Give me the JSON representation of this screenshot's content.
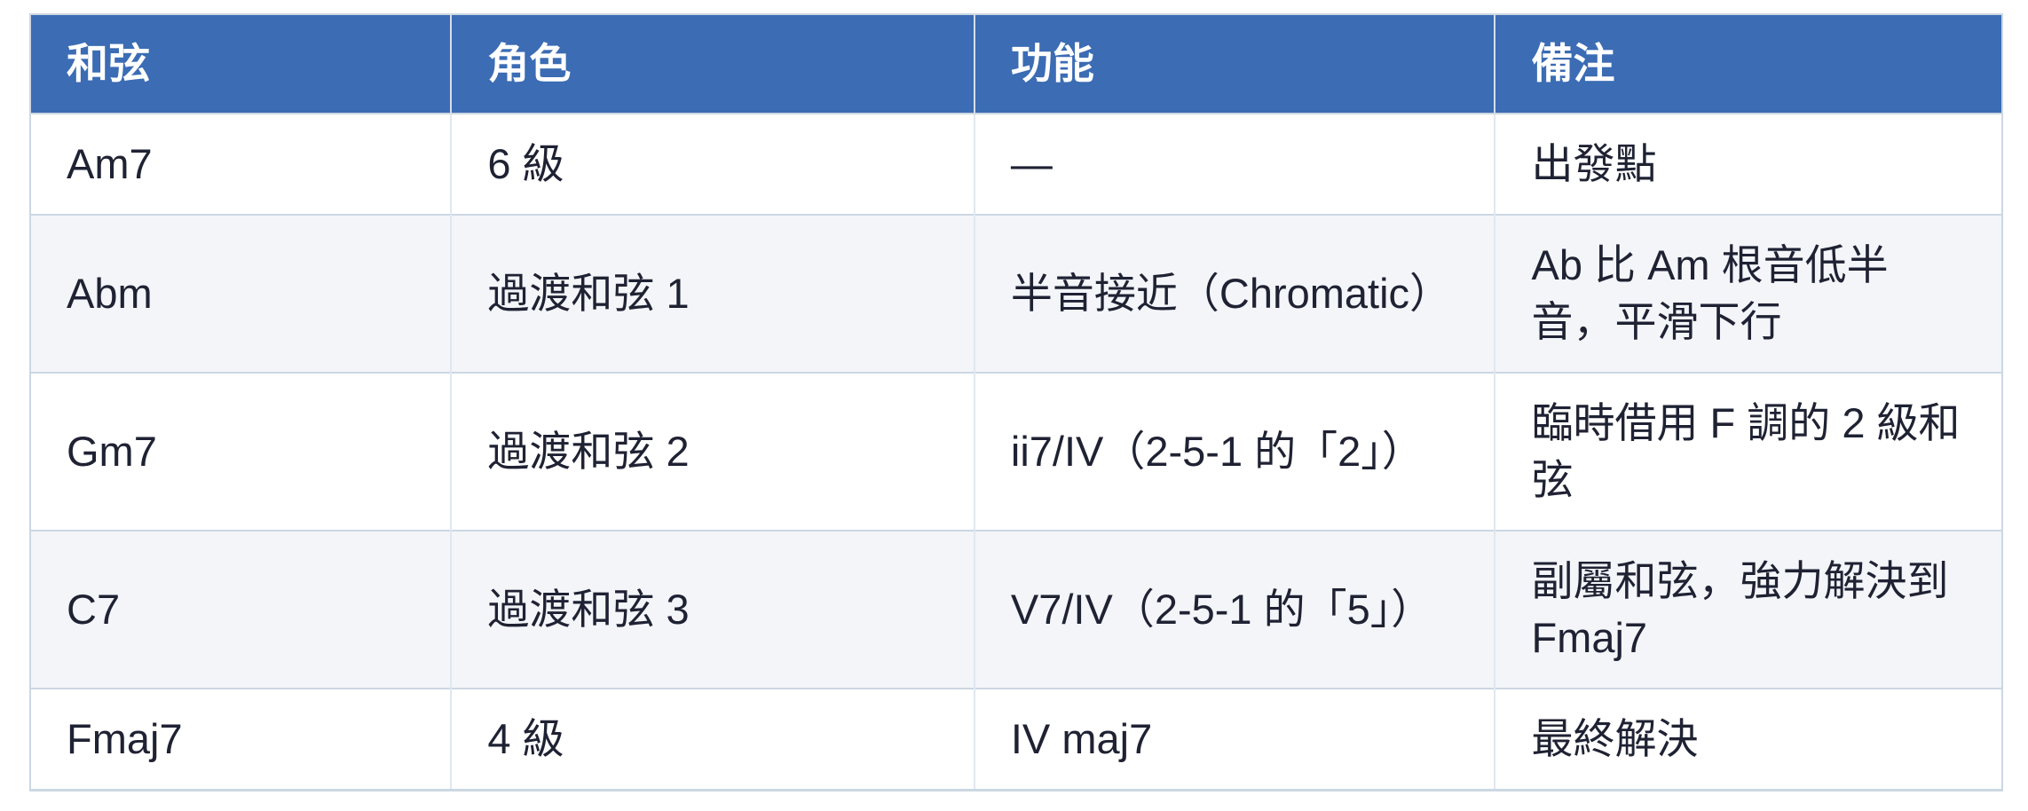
{
  "table": {
    "columns": [
      {
        "key": "chord",
        "label": "和弦"
      },
      {
        "key": "role",
        "label": "角色"
      },
      {
        "key": "function",
        "label": "功能"
      },
      {
        "key": "note",
        "label": "備注"
      }
    ],
    "rows": [
      {
        "chord": "Am7",
        "role": "6 級",
        "function": "—",
        "note": "出發點"
      },
      {
        "chord": "Abm",
        "role": "過渡和弦 1",
        "function": "半音接近（Chromatic）",
        "note": "Ab 比 Am 根音低半音，平滑下行"
      },
      {
        "chord": "Gm7",
        "role": "過渡和弦 2",
        "function": "ii7/IV（2-5-1 的「2」）",
        "note": "臨時借用 F 調的 2 級和弦"
      },
      {
        "chord": "C7",
        "role": "過渡和弦 3",
        "function": "V7/IV（2-5-1 的「5」）",
        "note": "副屬和弦，強力解決到 Fmaj7"
      },
      {
        "chord": "Fmaj7",
        "role": "4 級",
        "function": "IV maj7",
        "note": "最終解決"
      }
    ],
    "colors": {
      "header_bg": "#3b6cb4",
      "header_text": "#ffffff",
      "row_bg": "#ffffff",
      "row_alt_bg": "#f3f5f9",
      "border": "#ccd7e3",
      "divider_light": "#e0e7f0",
      "header_divider": "#d6deea",
      "text": "#1f2233"
    }
  }
}
